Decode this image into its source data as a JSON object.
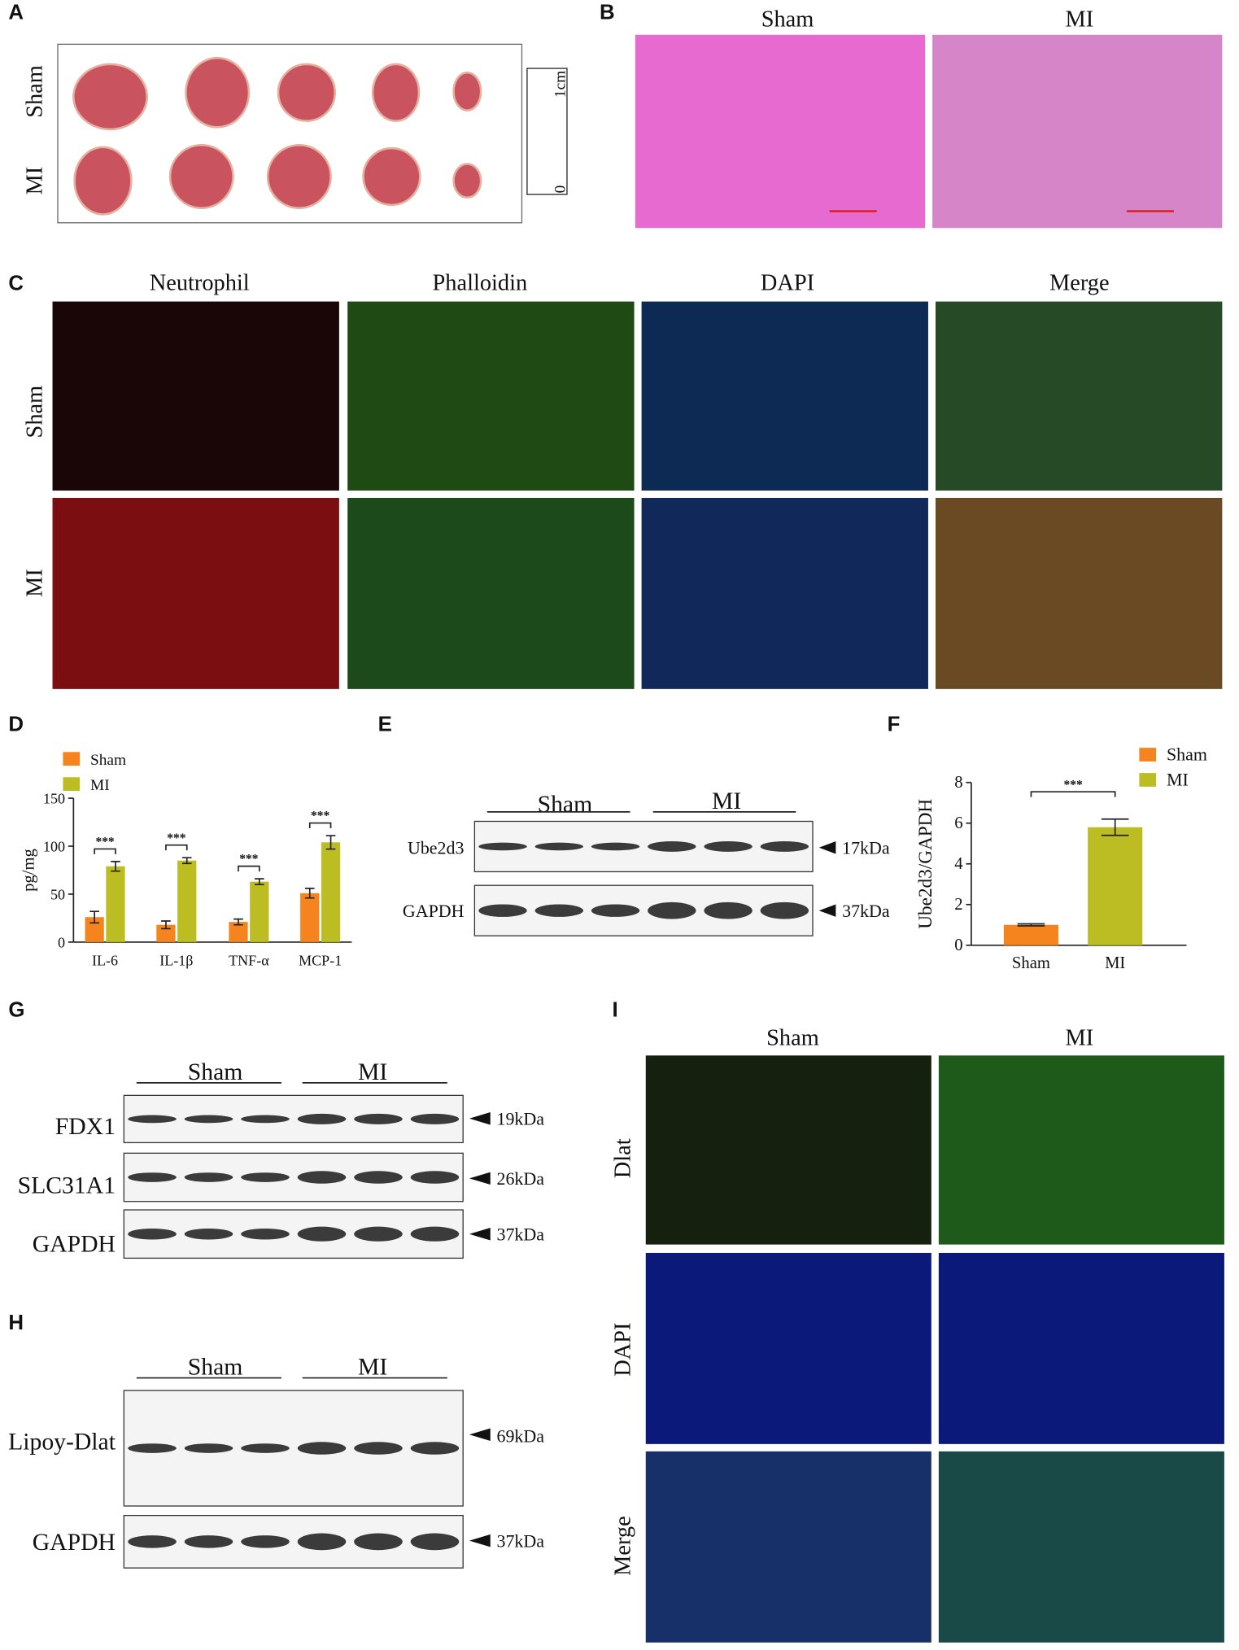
{
  "panels": {
    "A": {
      "letter": "A",
      "rows": [
        "Sham",
        "MI"
      ],
      "ruler": [
        "1cm",
        "0"
      ]
    },
    "B": {
      "letter": "B",
      "columns": [
        "Sham",
        "MI"
      ]
    },
    "C": {
      "letter": "C",
      "columns": [
        "Neutrophil",
        "Phalloidin",
        "DAPI",
        "Merge"
      ],
      "rows": [
        "Sham",
        "MI"
      ]
    },
    "D": {
      "letter": "D"
    },
    "E": {
      "letter": "E",
      "groups": [
        "Sham",
        "MI"
      ],
      "rows": [
        "Ube2d3",
        "GAPDH"
      ],
      "sizes": [
        "17kDa",
        "37kDa"
      ]
    },
    "F": {
      "letter": "F"
    },
    "G": {
      "letter": "G",
      "groups": [
        "Sham",
        "MI"
      ],
      "rows": [
        "FDX1",
        "SLC31A1",
        "GAPDH"
      ],
      "sizes": [
        "19kDa",
        "26kDa",
        "37kDa"
      ]
    },
    "H": {
      "letter": "H",
      "groups": [
        "Sham",
        "MI"
      ],
      "rows": [
        "Lipoy-Dlat",
        "GAPDH"
      ],
      "sizes": [
        "69kDa",
        "37kDa"
      ]
    },
    "I": {
      "letter": "I",
      "columns": [
        "Sham",
        "MI"
      ],
      "rows": [
        "Dlat",
        "DAPI",
        "Merge"
      ]
    }
  },
  "chart_data": [
    {
      "type": "bar",
      "ylabel": "pg/mg",
      "categories": [
        "IL-6",
        "IL-1β",
        "TNF-α",
        "MCP-1"
      ],
      "series": [
        {
          "name": "Sham",
          "color": "#f5841f",
          "values": [
            26,
            18,
            21,
            51
          ],
          "errors": [
            6,
            4,
            3,
            5
          ]
        },
        {
          "name": "MI",
          "color": "#bcbd22",
          "values": [
            79,
            85,
            63,
            104
          ],
          "errors": [
            5,
            3,
            3,
            7
          ]
        }
      ],
      "significance": [
        "***",
        "***",
        "***",
        "***"
      ],
      "ylim": [
        0,
        150
      ],
      "yticks": [
        0,
        50,
        100,
        150
      ]
    },
    {
      "type": "bar",
      "ylabel": "Ube2d3/GAPDH",
      "categories": [
        "Sham",
        "MI"
      ],
      "values": [
        1.0,
        5.8
      ],
      "errors": [
        0.05,
        0.4
      ],
      "colors": [
        "#f5841f",
        "#bcbd22"
      ],
      "significance": "***",
      "ylim": [
        0,
        8
      ],
      "yticks": [
        0,
        2,
        4,
        6,
        8
      ]
    }
  ]
}
